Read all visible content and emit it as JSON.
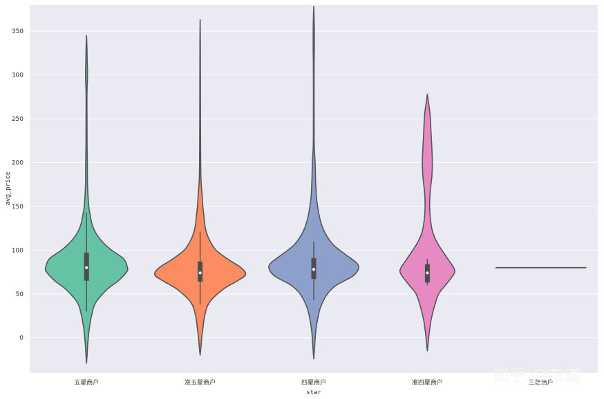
{
  "chart_data": {
    "type": "violin",
    "title": "",
    "xlabel": "star",
    "ylabel": "avg_price",
    "ylim": [
      -40,
      380
    ],
    "yticks": [
      0,
      50,
      100,
      150,
      200,
      250,
      300,
      350
    ],
    "grid": true,
    "categories": [
      "五星商户",
      "准五星商户",
      "四星商户",
      "准四星商户",
      "三星商户"
    ],
    "colors": [
      "#66c2a5",
      "#fc8d62",
      "#8da0cb",
      "#e78ac3",
      "#a6d854"
    ],
    "series": [
      {
        "name": "五星商户",
        "profile": [
          [
            -29,
            0
          ],
          [
            -20,
            0.012
          ],
          [
            -5,
            0.03
          ],
          [
            10,
            0.06
          ],
          [
            25,
            0.11
          ],
          [
            40,
            0.2
          ],
          [
            55,
            0.45
          ],
          [
            65,
            0.7
          ],
          [
            75,
            0.88
          ],
          [
            80,
            0.9
          ],
          [
            90,
            0.82
          ],
          [
            100,
            0.55
          ],
          [
            110,
            0.34
          ],
          [
            120,
            0.2
          ],
          [
            130,
            0.12
          ],
          [
            140,
            0.08
          ],
          [
            150,
            0.05
          ],
          [
            165,
            0.03
          ],
          [
            180,
            0.02
          ],
          [
            200,
            0.018
          ],
          [
            220,
            0.012
          ],
          [
            250,
            0.01
          ],
          [
            280,
            0.01
          ],
          [
            295,
            0.02
          ],
          [
            305,
            0.022
          ],
          [
            315,
            0.015
          ],
          [
            330,
            0.01
          ],
          [
            345,
            0
          ]
        ],
        "q1": 65,
        "median": 80,
        "q3": 97,
        "whisker_low": 30,
        "whisker_high": 143
      },
      {
        "name": "准五星商户",
        "profile": [
          [
            -20,
            0
          ],
          [
            -10,
            0.02
          ],
          [
            0,
            0.035
          ],
          [
            10,
            0.06
          ],
          [
            25,
            0.1
          ],
          [
            40,
            0.2
          ],
          [
            55,
            0.5
          ],
          [
            65,
            0.82
          ],
          [
            72,
            1.0
          ],
          [
            80,
            0.9
          ],
          [
            90,
            0.6
          ],
          [
            100,
            0.35
          ],
          [
            110,
            0.22
          ],
          [
            120,
            0.14
          ],
          [
            130,
            0.1
          ],
          [
            140,
            0.08
          ],
          [
            150,
            0.06
          ],
          [
            165,
            0.04
          ],
          [
            180,
            0.02
          ],
          [
            200,
            0.012
          ],
          [
            250,
            0.008
          ],
          [
            300,
            0.006
          ],
          [
            340,
            0.004
          ],
          [
            363,
            0
          ]
        ],
        "q1": 64,
        "median": 74,
        "q3": 87,
        "whisker_low": 38,
        "whisker_high": 121
      },
      {
        "name": "四星商户",
        "profile": [
          [
            -24,
            0
          ],
          [
            -10,
            0.02
          ],
          [
            5,
            0.04
          ],
          [
            20,
            0.08
          ],
          [
            35,
            0.15
          ],
          [
            50,
            0.3
          ],
          [
            60,
            0.5
          ],
          [
            70,
            0.85
          ],
          [
            78,
            0.98
          ],
          [
            85,
            0.95
          ],
          [
            95,
            0.7
          ],
          [
            105,
            0.45
          ],
          [
            115,
            0.3
          ],
          [
            125,
            0.2
          ],
          [
            135,
            0.14
          ],
          [
            145,
            0.1
          ],
          [
            160,
            0.06
          ],
          [
            180,
            0.04
          ],
          [
            200,
            0.03
          ],
          [
            220,
            0.01
          ],
          [
            250,
            0.008
          ],
          [
            300,
            0.007
          ],
          [
            330,
            0.012
          ],
          [
            350,
            0.012
          ],
          [
            365,
            0.008
          ],
          [
            378,
            0
          ]
        ],
        "q1": 67,
        "median": 78,
        "q3": 91,
        "whisker_low": 43,
        "whisker_high": 110
      },
      {
        "name": "准四星商户",
        "profile": [
          [
            -15,
            0
          ],
          [
            -5,
            0.02
          ],
          [
            5,
            0.04
          ],
          [
            20,
            0.08
          ],
          [
            35,
            0.15
          ],
          [
            50,
            0.25
          ],
          [
            60,
            0.4
          ],
          [
            70,
            0.55
          ],
          [
            75,
            0.6
          ],
          [
            80,
            0.58
          ],
          [
            90,
            0.45
          ],
          [
            100,
            0.32
          ],
          [
            110,
            0.2
          ],
          [
            120,
            0.12
          ],
          [
            130,
            0.08
          ],
          [
            140,
            0.06
          ],
          [
            150,
            0.05
          ],
          [
            165,
            0.06
          ],
          [
            185,
            0.1
          ],
          [
            200,
            0.11
          ],
          [
            215,
            0.1
          ],
          [
            235,
            0.08
          ],
          [
            255,
            0.06
          ],
          [
            270,
            0.02
          ],
          [
            278,
            0
          ]
        ],
        "q1": 63,
        "median": 74,
        "q3": 84,
        "whisker_low": 60,
        "whisker_high": 90
      },
      {
        "name": "三星商户",
        "single_value": 80
      }
    ]
  },
  "watermark": {
    "text": "知乎 @布道"
  }
}
